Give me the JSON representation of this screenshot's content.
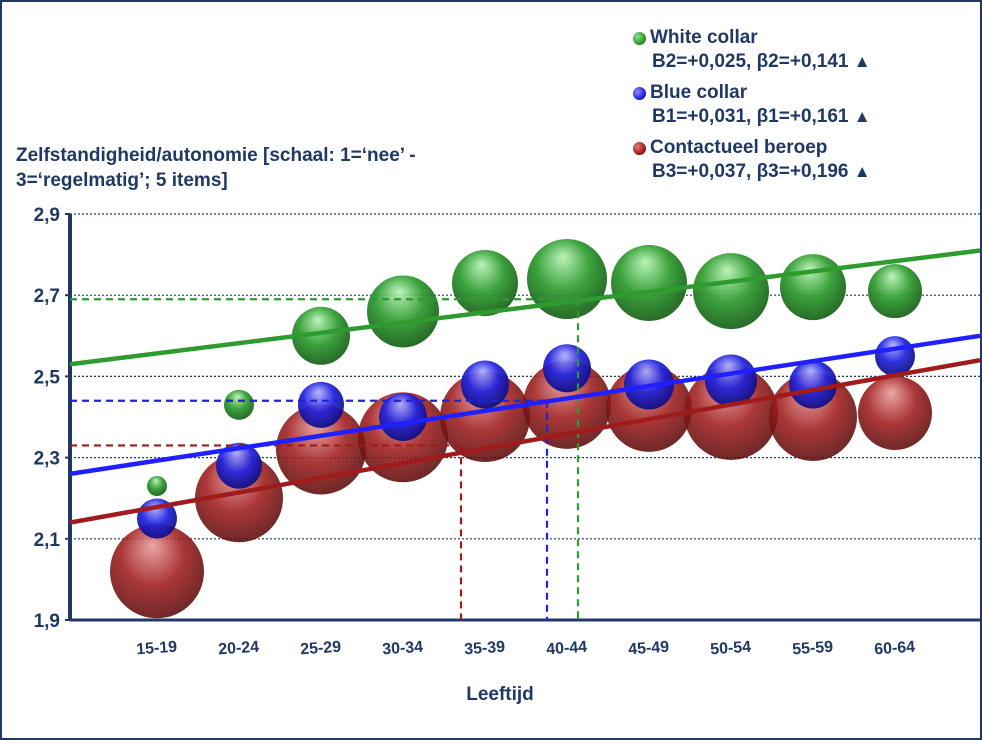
{
  "chart_data": {
    "type": "scatter",
    "subtype": "bubble",
    "ylabel": "Zelfstandigheid/autonomie [schaal: 1=‘nee’ - 3=‘regelmatig’; 5 items]",
    "xlabel": "Leeftijd",
    "categories": [
      "15-19",
      "20-24",
      "25-29",
      "30-34",
      "35-39",
      "40-44",
      "45-49",
      "50-54",
      "55-59",
      "60-64"
    ],
    "ylim": [
      1.9,
      2.9
    ],
    "yticks": [
      "1,9",
      "2,1",
      "2,3",
      "2,5",
      "2,7",
      "2,9"
    ],
    "grid": "horizontal dotted",
    "legend_position": "top-right",
    "series": [
      {
        "name": "White collar",
        "stats": "B2=+0,025, β2=+0,141",
        "marker": "▲",
        "color": "#2e9b2e",
        "values": [
          2.23,
          2.43,
          2.6,
          2.66,
          2.73,
          2.74,
          2.73,
          2.71,
          2.72,
          2.71
        ],
        "sizes": [
          10,
          15,
          29,
          36,
          33,
          40,
          38,
          38,
          33,
          27
        ],
        "trend": [
          2.53,
          2.81
        ],
        "mean_x": "40-44",
        "mean_y": 2.69
      },
      {
        "name": "Blue collar",
        "stats": "B1=+0,031, β1=+0,161",
        "marker": "▲",
        "color": "#2222dd",
        "values": [
          2.15,
          2.28,
          2.43,
          2.4,
          2.48,
          2.52,
          2.48,
          2.49,
          2.48,
          2.55
        ],
        "sizes": [
          20,
          23,
          23,
          24,
          24,
          24,
          25,
          26,
          24,
          20
        ],
        "trend": [
          2.26,
          2.6
        ],
        "mean_x": "40-44",
        "mean_y": 2.44
      },
      {
        "name": "Contactueel beroep",
        "stats": "B3=+0,037, β3=+0,196",
        "marker": "▲",
        "color": "#a01c1c",
        "values": [
          2.02,
          2.2,
          2.32,
          2.35,
          2.4,
          2.43,
          2.42,
          2.41,
          2.4,
          2.41
        ],
        "sizes": [
          47,
          44,
          45,
          45,
          45,
          44,
          43,
          47,
          44,
          37
        ],
        "trend": [
          2.14,
          2.54
        ],
        "mean_x": "35-39",
        "mean_y": 2.33
      }
    ]
  }
}
